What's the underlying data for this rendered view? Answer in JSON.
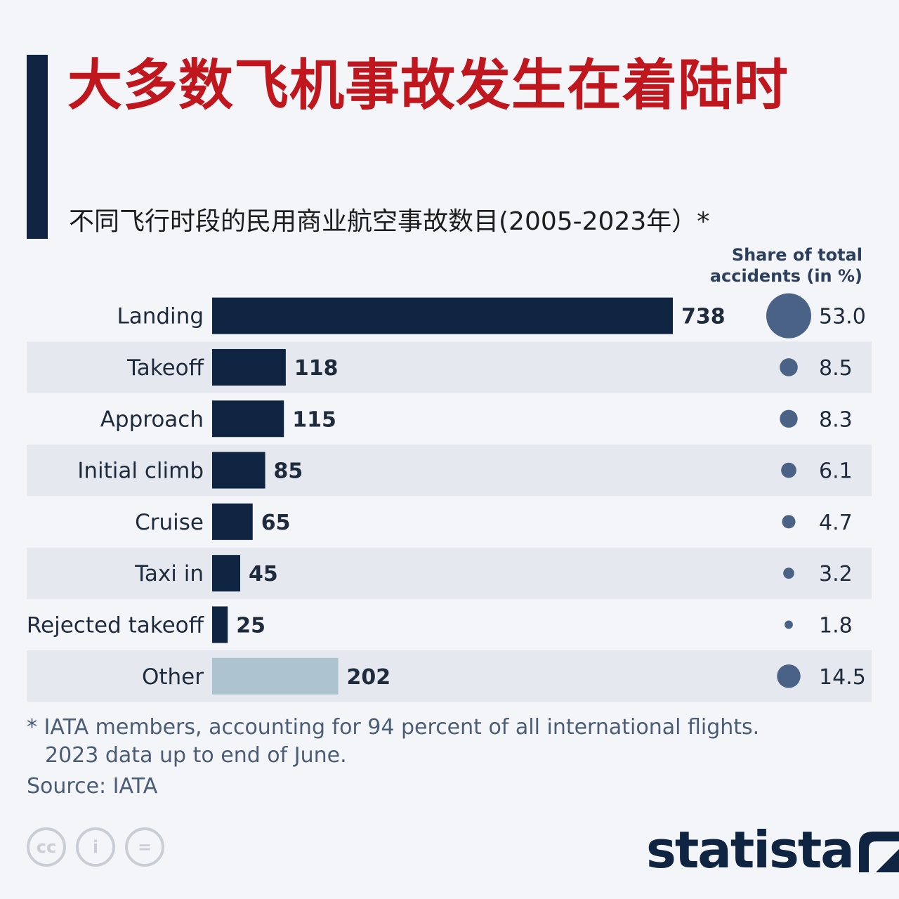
{
  "title": "大多数飞机事故发生在着陆时",
  "subtitle": "不同飞行时段的民用商业航空事故数目(2005-2023年）*",
  "share_header_line1": "Share of total",
  "share_header_line2": "accidents (in %)",
  "footnote_line1": "* IATA members, accounting for 94 percent of all international flights.",
  "footnote_line2": "2023 data up to end of June.",
  "source": "Source: IATA",
  "logo_text": "statista",
  "cc_icons": [
    "cc-icon",
    "by-icon",
    "nd-icon"
  ],
  "cc_labels": [
    "cc",
    "i",
    "="
  ],
  "colors": {
    "title": "#c0161d",
    "bar": "#0f2440",
    "bar_other": "#adc3cf",
    "bubble": "#4a6285",
    "stripe": "#e5e9ef"
  },
  "chart_data": {
    "type": "bar",
    "orientation": "horizontal",
    "categories": [
      "Landing",
      "Takeoff",
      "Approach",
      "Initial climb",
      "Cruise",
      "Taxi in",
      "Rejected takeoff",
      "Other"
    ],
    "series": [
      {
        "values": [
          738,
          118,
          115,
          85,
          65,
          45,
          25,
          202
        ]
      }
    ],
    "share_percent": [
      53.0,
      8.5,
      8.3,
      6.1,
      4.7,
      3.2,
      1.8,
      14.5
    ],
    "share_labels": [
      "53.0",
      "8.5",
      "8.3",
      "6.1",
      "4.7",
      "3.2",
      "1.8",
      "14.5"
    ],
    "highlight_last_category_color": true,
    "xlim": [
      0,
      738
    ],
    "grid": false,
    "legend": "none"
  }
}
